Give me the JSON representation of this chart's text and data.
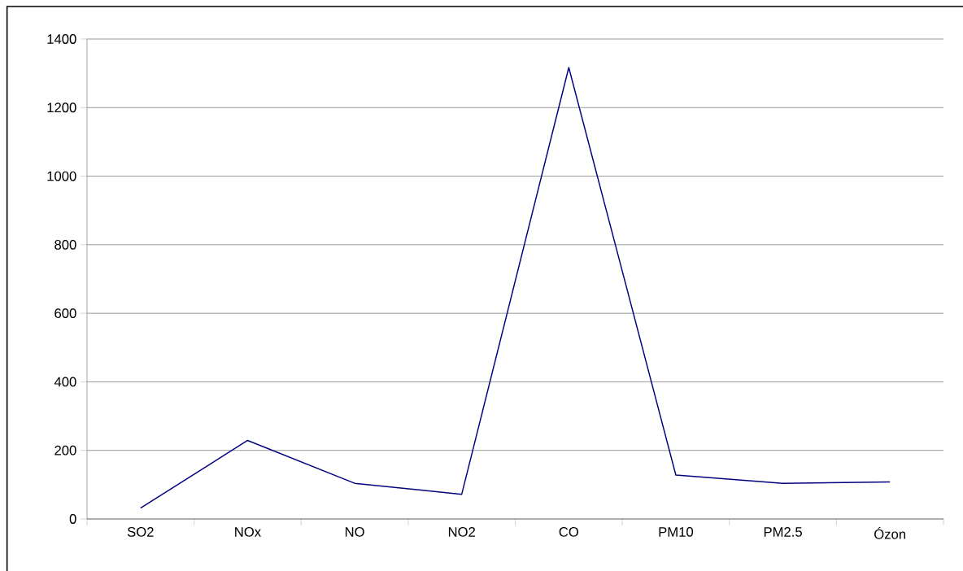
{
  "chart_data": {
    "type": "line",
    "categories": [
      "SO2",
      "NOx",
      "NO",
      "NO2",
      "CO",
      "PM10",
      "PM2.5",
      "Ózon"
    ],
    "values": [
      32,
      229,
      104,
      72,
      1317,
      128,
      104,
      108
    ],
    "color": "#000080",
    "ylim": [
      0,
      1400
    ],
    "yticks": [
      0,
      200,
      400,
      600,
      800,
      1000,
      1200,
      1400
    ],
    "grid": "y",
    "marker": "none",
    "line_style": "solid"
  }
}
